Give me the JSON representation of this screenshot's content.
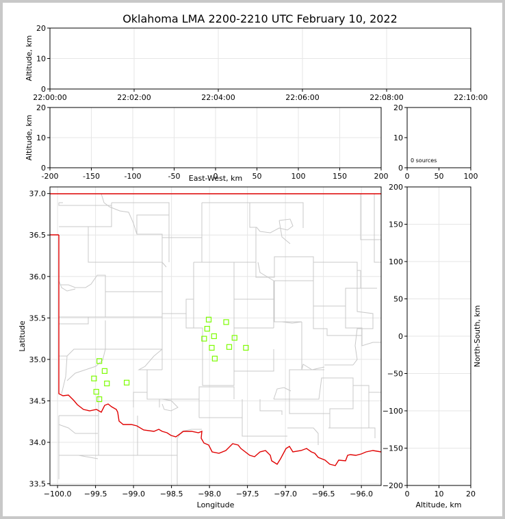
{
  "title": "Oklahoma LMA 2200-2210 UTC February 10, 2022",
  "chart_data": [
    {
      "name": "altitude-time",
      "type": "scatter",
      "ylabel": "Altitude, km",
      "xlim": [
        "22:00:00",
        "22:10:00"
      ],
      "ylim": [
        0,
        20
      ],
      "xticks": [
        "22:00:00",
        "22:02:00",
        "22:04:00",
        "22:06:00",
        "22:08:00",
        "22:10:00"
      ],
      "yticks": [
        0,
        10,
        20
      ],
      "grid": true,
      "points": []
    },
    {
      "name": "altitude-eastwest",
      "type": "scatter",
      "xlabel": "East-West, km",
      "ylabel": "Altitude, km",
      "xlim": [
        -200,
        200
      ],
      "ylim": [
        0,
        20
      ],
      "xticks": [
        -200,
        -150,
        -100,
        -50,
        0,
        50,
        100,
        150,
        200
      ],
      "yticks": [
        0,
        10,
        20
      ],
      "grid": true,
      "points": []
    },
    {
      "name": "histogram",
      "type": "bar",
      "annotation": "0 sources",
      "xlim": [
        0,
        100
      ],
      "ylim": [
        0,
        20
      ],
      "xticks": [
        0,
        50,
        100
      ],
      "yticks": [
        0,
        10,
        20
      ],
      "grid": false,
      "values": []
    },
    {
      "name": "plan-view",
      "type": "scatter",
      "xlabel": "Longitude",
      "ylabel": "Latitude",
      "xlim": [
        -100.1,
        -95.74
      ],
      "ylim": [
        33.48,
        37.08
      ],
      "xticks": [
        -100.0,
        -99.5,
        -99.0,
        -98.5,
        -98.0,
        -97.5,
        -97.0,
        -96.5,
        -96.0
      ],
      "xtick_labels": [
        "−100.0",
        "−99.5",
        "−99.0",
        "−98.5",
        "−98.0",
        "−97.5",
        "−97.0",
        "−96.5",
        "−96.0"
      ],
      "yticks": [
        33.5,
        34.0,
        34.5,
        35.0,
        35.5,
        36.0,
        36.5,
        37.0
      ],
      "ytick_labels": [
        "33.5",
        "34.0",
        "34.5",
        "35.0",
        "35.5",
        "36.0",
        "36.5",
        "37.0"
      ],
      "grid": true,
      "marker": "open-square",
      "marker_color": "#7cfc00",
      "points": [
        {
          "lon": -98.01,
          "lat": 35.48
        },
        {
          "lon": -97.78,
          "lat": 35.45
        },
        {
          "lon": -98.03,
          "lat": 35.37
        },
        {
          "lon": -97.94,
          "lat": 35.28
        },
        {
          "lon": -98.07,
          "lat": 35.25
        },
        {
          "lon": -97.67,
          "lat": 35.26
        },
        {
          "lon": -97.97,
          "lat": 35.14
        },
        {
          "lon": -97.74,
          "lat": 35.15
        },
        {
          "lon": -97.52,
          "lat": 35.14
        },
        {
          "lon": -97.93,
          "lat": 35.01
        },
        {
          "lon": -99.45,
          "lat": 34.98
        },
        {
          "lon": -99.38,
          "lat": 34.86
        },
        {
          "lon": -99.52,
          "lat": 34.77
        },
        {
          "lon": -99.35,
          "lat": 34.71
        },
        {
          "lon": -99.09,
          "lat": 34.72
        },
        {
          "lon": -99.49,
          "lat": 34.61
        },
        {
          "lon": -99.45,
          "lat": 34.52
        }
      ]
    },
    {
      "name": "northsouth-altitude",
      "type": "scatter",
      "xlabel": "Altitude, km",
      "ylabel": "North-South, km",
      "xlim": [
        0,
        20
      ],
      "ylim": [
        -200,
        200
      ],
      "xticks": [
        0,
        10,
        20
      ],
      "yticks": [
        -200,
        -150,
        -100,
        -50,
        0,
        50,
        100,
        150,
        200
      ],
      "ytick_labels": [
        "−200",
        "−150",
        "−100",
        "−50",
        "0",
        "50",
        "100",
        "150",
        "200"
      ],
      "grid": true,
      "points": []
    }
  ],
  "colors": {
    "state_border": "#e00000",
    "county_lines": "#c8c8c8",
    "grid": "#e6e6e6",
    "frame": "#c8c8c8"
  }
}
